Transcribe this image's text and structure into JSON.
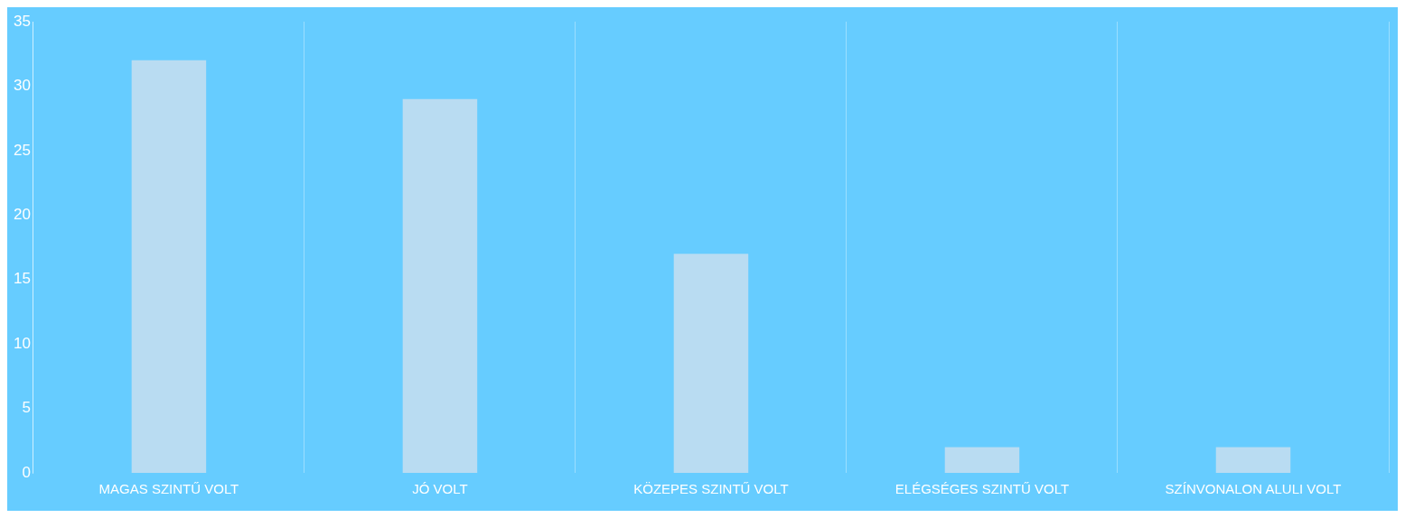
{
  "chart_data": {
    "type": "bar",
    "categories": [
      "MAGAS SZINTŰ VOLT",
      "JÓ VOLT",
      "KÖZEPES SZINTŰ VOLT",
      "ELÉGSÉGES SZINTŰ VOLT",
      "SZÍNVONALON ALULI VOLT"
    ],
    "values": [
      32,
      29,
      17,
      2,
      2
    ],
    "color": "#b9dcf2",
    "ylim": [
      0,
      35
    ],
    "yticks": [
      0,
      5,
      10,
      15,
      20,
      25,
      30,
      35
    ],
    "grid": "x",
    "legend": false
  }
}
